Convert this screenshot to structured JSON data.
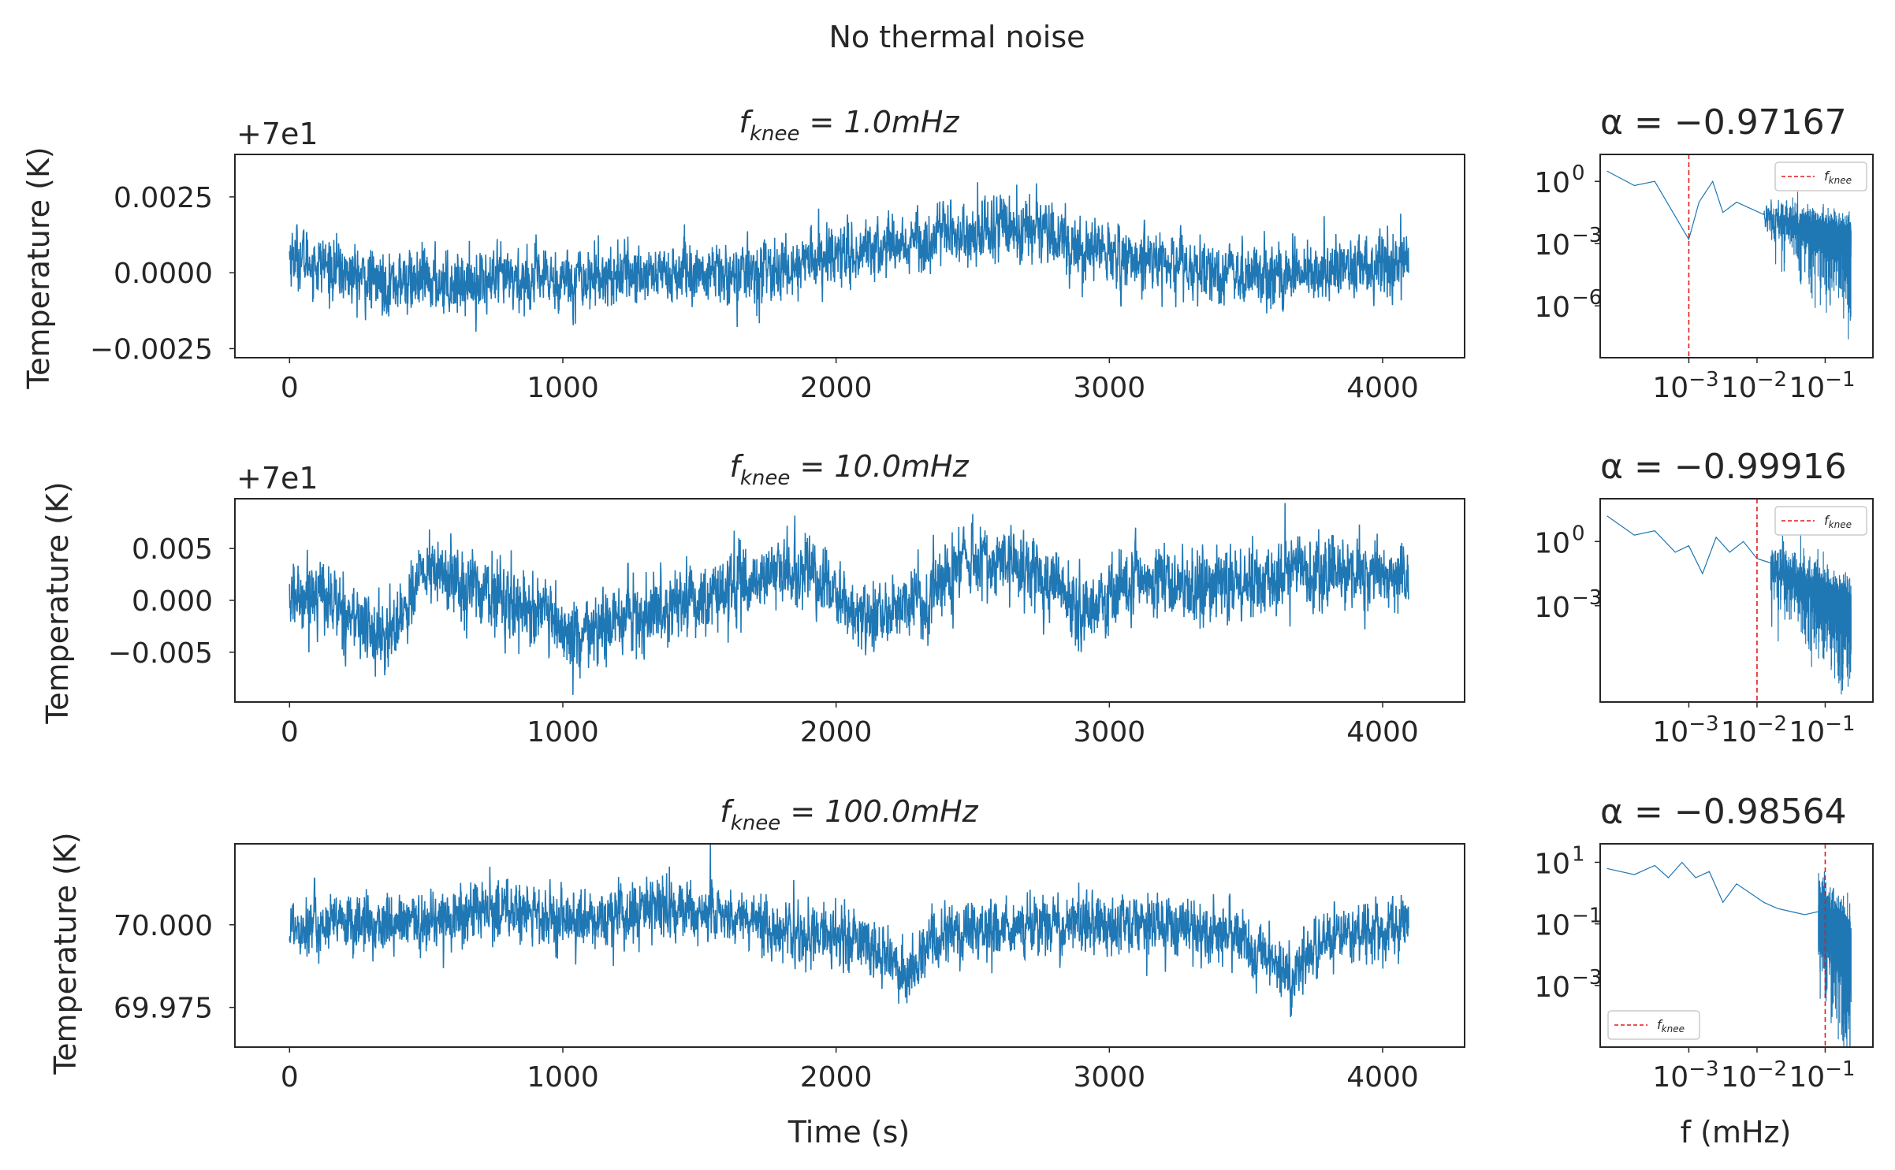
{
  "figure": {
    "suptitle": "No thermal noise"
  },
  "colors": {
    "series": "#1f77b4",
    "knee": "#e31a1c",
    "axes": "#262626"
  },
  "chart_data": [
    {
      "type": "line",
      "title": "f_{knee} = 1.0mHz",
      "title_parts": {
        "base": "f",
        "sub": "knee",
        "rest": " = 1.0mHz"
      },
      "ylabel": "Temperature (K)",
      "offset_label": "+7e1",
      "xlim": [
        -200,
        4300
      ],
      "ylim": [
        -0.0028,
        0.0039
      ],
      "xticks": [
        0,
        1000,
        2000,
        3000,
        4000
      ],
      "xtick_labels": [
        "0",
        "1000",
        "2000",
        "3000",
        "4000"
      ],
      "yticks": [
        -0.0025,
        0.0,
        0.0025
      ],
      "ytick_labels": [
        "−0.0025",
        "0.0000",
        "0.0025"
      ],
      "series": [
        {
          "trend_x": [
            0,
            300,
            700,
            1000,
            1300,
            1600,
            1800,
            2000,
            2300,
            2500,
            2700,
            2900,
            3200,
            3500,
            3700,
            3900,
            4095
          ],
          "trend_y": [
            0.0006,
            -0.0003,
            -0.0003,
            -0.0002,
            0.0,
            -0.0001,
            0.0001,
            0.0006,
            0.0011,
            0.0013,
            0.0016,
            0.0008,
            0.0003,
            0.0,
            -0.0001,
            0.0001,
            0.0005
          ],
          "noise_sd": 0.0005,
          "n_points": 4096
        }
      ]
    },
    {
      "type": "line",
      "title": "f_{knee} = 10.0mHz",
      "title_parts": {
        "base": "f",
        "sub": "knee",
        "rest": " = 10.0mHz"
      },
      "ylabel": "Temperature (K)",
      "offset_label": "+7e1",
      "xlim": [
        -200,
        4300
      ],
      "ylim": [
        -0.0098,
        0.0098
      ],
      "xticks": [
        0,
        1000,
        2000,
        3000,
        4000
      ],
      "xtick_labels": [
        "0",
        "1000",
        "2000",
        "3000",
        "4000"
      ],
      "yticks": [
        -0.005,
        0.0,
        0.005
      ],
      "ytick_labels": [
        "−0.005",
        "0.000",
        "0.005"
      ],
      "series": [
        {
          "trend_x": [
            0,
            100,
            200,
            350,
            500,
            700,
            900,
            1050,
            1200,
            1500,
            1700,
            1900,
            2100,
            2300,
            2500,
            2700,
            2900,
            3100,
            3300,
            3500,
            3700,
            3900,
            4095
          ],
          "trend_y": [
            0.0,
            0.001,
            -0.001,
            -0.004,
            0.003,
            0.001,
            -0.001,
            -0.004,
            -0.002,
            0.0,
            0.002,
            0.003,
            -0.002,
            0.0,
            0.004,
            0.003,
            -0.001,
            0.002,
            0.001,
            0.002,
            0.003,
            0.003,
            0.002
          ],
          "noise_sd": 0.0017,
          "n_points": 4096
        }
      ]
    },
    {
      "type": "line",
      "title": "f_{knee} = 100.0mHz",
      "title_parts": {
        "base": "f",
        "sub": "knee",
        "rest": " = 100.0mHz"
      },
      "ylabel": "Temperature (K)",
      "xlabel": "Time (s)",
      "offset_label": "",
      "xlim": [
        -200,
        4300
      ],
      "ylim": [
        69.963,
        70.0245
      ],
      "xticks": [
        0,
        1000,
        2000,
        3000,
        4000
      ],
      "xtick_labels": [
        "0",
        "1000",
        "2000",
        "3000",
        "4000"
      ],
      "yticks": [
        69.975,
        70.0
      ],
      "ytick_labels": [
        "69.975",
        "70.000"
      ],
      "series": [
        {
          "trend_x": [
            0,
            400,
            800,
            1000,
            1400,
            1600,
            1900,
            2100,
            2250,
            2400,
            2800,
            3200,
            3500,
            3650,
            3800,
            4095
          ],
          "trend_y": [
            70.0,
            70.0,
            70.005,
            70.0,
            70.005,
            70.003,
            69.997,
            69.995,
            69.985,
            69.998,
            70.0,
            70.0,
            69.996,
            69.985,
            69.996,
            70.0
          ],
          "noise_sd": 0.0045,
          "n_points": 4096
        }
      ]
    },
    {
      "type": "line",
      "title": "α = −0.97167",
      "alpha": -0.97167,
      "xscale": "log",
      "yscale": "log",
      "xlim_log10": [
        -4.3,
        -0.3
      ],
      "ylim_log10": [
        -8.5,
        1.3
      ],
      "xticks_log10": [
        -3,
        -2,
        -1
      ],
      "yticks_log10": [
        0,
        -3,
        -6
      ],
      "knee_x_log10": -3,
      "legend": {
        "label": "f_{knee}",
        "placement": "upper right"
      },
      "series": [
        {
          "low_x_log10": [
            -4.2,
            -3.8,
            -3.5,
            -3.0,
            -2.85,
            -2.65,
            -2.5,
            -2.3,
            -2.1,
            -1.9
          ],
          "low_y_log10": [
            0.5,
            -0.2,
            0.0,
            -2.8,
            -1.0,
            0.0,
            -1.5,
            -1.0,
            -1.3,
            -1.6
          ],
          "slope": -0.97167,
          "end_level": -3.0,
          "noise_sd": 0.5
        }
      ]
    },
    {
      "type": "line",
      "title": "α = −0.99916",
      "alpha": -0.99916,
      "xscale": "log",
      "yscale": "log",
      "xlim_log10": [
        -4.3,
        -0.3
      ],
      "ylim_log10": [
        -7.5,
        2.0
      ],
      "xticks_log10": [
        -3,
        -2,
        -1
      ],
      "yticks_log10": [
        0,
        -3
      ],
      "knee_x_log10": -2,
      "legend": {
        "label": "f_{knee}",
        "placement": "upper right"
      },
      "series": [
        {
          "low_x_log10": [
            -4.2,
            -3.8,
            -3.5,
            -3.2,
            -3.0,
            -2.8,
            -2.6,
            -2.4,
            -2.2,
            -2.0,
            -1.8
          ],
          "low_y_log10": [
            1.2,
            0.3,
            0.5,
            -0.5,
            -0.2,
            -1.5,
            0.2,
            -0.5,
            0.0,
            -0.8,
            -1.0
          ],
          "slope": -0.99916,
          "end_level": -3.5,
          "noise_sd": 0.6
        }
      ]
    },
    {
      "type": "line",
      "title": "α = −0.98564",
      "alpha": -0.98564,
      "xscale": "log",
      "yscale": "log",
      "xlim_log10": [
        -4.3,
        -0.3
      ],
      "ylim_log10": [
        -5.0,
        1.6
      ],
      "xticks_log10": [
        -3,
        -2,
        -1
      ],
      "yticks_log10": [
        1,
        -1,
        -3
      ],
      "knee_x_log10": -1,
      "legend": {
        "label": "f_{knee}",
        "placement": "lower left"
      },
      "series": [
        {
          "low_x_log10": [
            -4.2,
            -3.8,
            -3.5,
            -3.3,
            -3.1,
            -2.9,
            -2.7,
            -2.5,
            -2.3,
            -2.1,
            -1.9,
            -1.7,
            -1.5,
            -1.3,
            -1.1
          ],
          "low_y_log10": [
            0.8,
            0.6,
            0.9,
            0.5,
            1.0,
            0.5,
            0.7,
            -0.3,
            0.3,
            0.0,
            -0.3,
            -0.5,
            -0.6,
            -0.7,
            -0.6
          ],
          "slope": -0.98564,
          "end_level": -2.0,
          "noise_sd": 0.5
        }
      ]
    }
  ]
}
